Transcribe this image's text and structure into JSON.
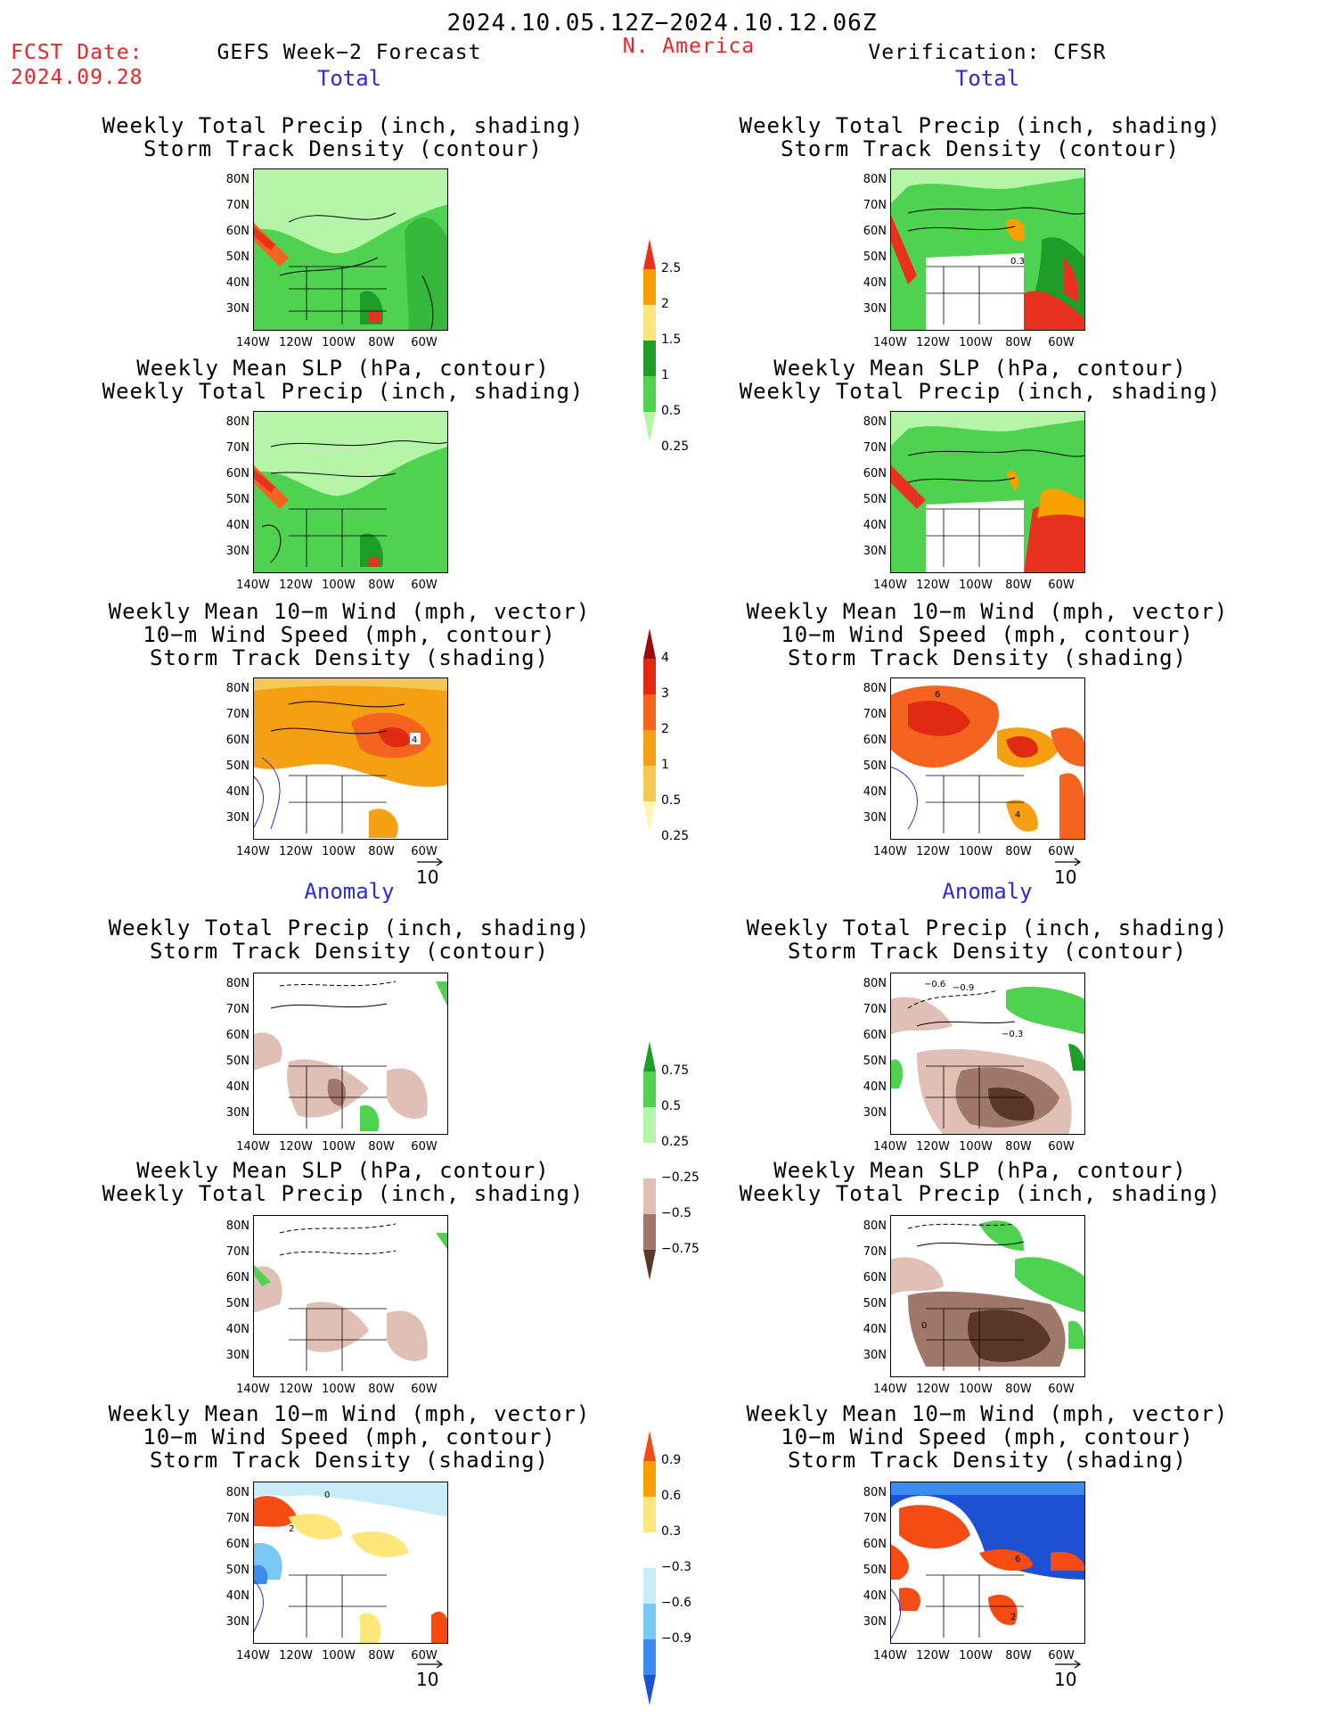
{
  "header": {
    "period": "2024.10.05.12Z−2024.10.12.06Z",
    "fcst_label": "FCST Date:",
    "fcst_date": "2024.09.28",
    "left_title": "GEFS Week−2 Forecast",
    "region": "N. America",
    "right_title": "Verification: CFSR"
  },
  "sections": {
    "total": "Total",
    "anomaly": "Anomaly"
  },
  "panels": {
    "precip_track": "Weekly Total Precip (inch, shading)\nStorm Track Density (contour)",
    "slp_precip": "Weekly Mean SLP (hPa, contour)\nWeekly Total Precip (inch, shading)",
    "wind_track": "Weekly Mean 10−m Wind (mph, vector)\n10−m Wind Speed (mph, contour)\nStorm Track Density (shading)"
  },
  "axes": {
    "lat_ticks": [
      "80N",
      "70N",
      "60N",
      "50N",
      "40N",
      "30N"
    ],
    "lon_ticks": [
      "140W",
      "120W",
      "100W",
      "80W",
      "60W"
    ]
  },
  "vector_ref": "10",
  "map_annotations": {
    "fc_total_wind": "4",
    "fc_anom_wind_a": "0",
    "fc_anom_wind_b": "2",
    "ver_total_track": "0.3",
    "ver_total_wind_a": "6",
    "ver_total_wind_b": "4",
    "ver_anom_track_a": "−0.6",
    "ver_anom_track_b": "−0.9",
    "ver_anom_track_c": "−0.3",
    "ver_anom_slp": "0",
    "ver_anom_wind_a": "6",
    "ver_anom_wind_b": "2"
  },
  "colorbars": {
    "precip_total": {
      "labels": [
        "2.5",
        "2",
        "1.5",
        "1",
        "0.5",
        "0.25"
      ],
      "colors": [
        "#e8321e",
        "#f7a000",
        "#fde67a",
        "#1e9e28",
        "#4fd24f",
        "#b4f5a8"
      ]
    },
    "track_total": {
      "labels": [
        "4",
        "3",
        "2",
        "1",
        "0.5",
        "0.25"
      ],
      "colors": [
        "#9c0a0a",
        "#e02a12",
        "#f5641e",
        "#f5a012",
        "#f5c850",
        "#fdf5b4"
      ]
    },
    "precip_anom": {
      "labels": [
        "0.75",
        "0.5",
        "0.25",
        "−0.25",
        "−0.5",
        "−0.75"
      ],
      "colors": [
        "#1e9e28",
        "#4fd24f",
        "#b4f5a8",
        "#ffffff",
        "#e0c0b4",
        "#a0786a",
        "#5a3828"
      ]
    },
    "track_anom": {
      "labels": [
        "0.9",
        "0.6",
        "0.3",
        "−0.3",
        "−0.6",
        "−0.9"
      ],
      "colors": [
        "#f54c14",
        "#f7a000",
        "#fde67a",
        "#ffffff",
        "#c8ecf8",
        "#78c8f5",
        "#3c8cf0",
        "#1e50d2"
      ]
    }
  }
}
